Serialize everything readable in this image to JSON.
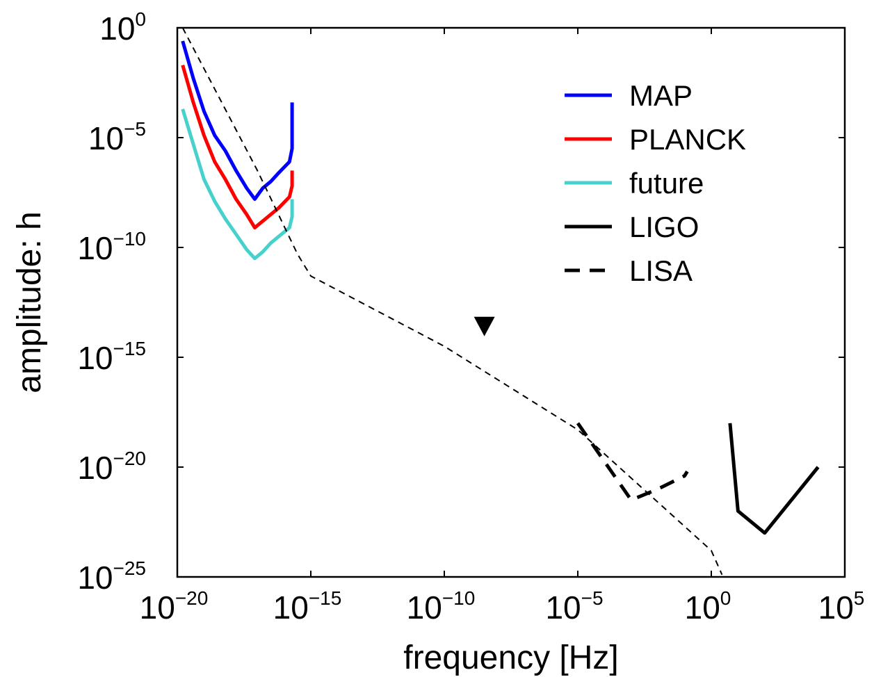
{
  "chart_data": {
    "type": "line",
    "title": "",
    "xlabel": "frequency [Hz]",
    "ylabel": "amplitude: h",
    "xscale": "log",
    "yscale": "log",
    "xlim_exp": [
      -20,
      5
    ],
    "ylim_exp": [
      -25,
      0
    ],
    "x_ticks": [
      {
        "base": "10",
        "exp": "−20",
        "value": -20
      },
      {
        "base": "10",
        "exp": "−15",
        "value": -15
      },
      {
        "base": "10",
        "exp": "−10",
        "value": -10
      },
      {
        "base": "10",
        "exp": "−5",
        "value": -5
      },
      {
        "base": "10",
        "exp": "0",
        "value": 0
      },
      {
        "base": "10",
        "exp": "5",
        "value": 5
      }
    ],
    "y_ticks": [
      {
        "base": "10",
        "exp": "0",
        "value": 0
      },
      {
        "base": "10",
        "exp": "−5",
        "value": -5
      },
      {
        "base": "10",
        "exp": "−10",
        "value": -10
      },
      {
        "base": "10",
        "exp": "−15",
        "value": -15
      },
      {
        "base": "10",
        "exp": "−20",
        "value": -20
      },
      {
        "base": "10",
        "exp": "−25",
        "value": -25
      }
    ],
    "grid": false,
    "legend_position": "top-right",
    "series": [
      {
        "name": "MAP",
        "color": "#0000ff",
        "style": "solid",
        "legend": true,
        "log10_x": [
          -19.8,
          -19.4,
          -19.0,
          -18.6,
          -18.2,
          -17.8,
          -17.4,
          -17.1,
          -16.8,
          -16.5,
          -16.2,
          -15.8,
          -15.7,
          -15.7
        ],
        "log10_y": [
          -0.6,
          -2.3,
          -3.8,
          -4.9,
          -5.6,
          -6.5,
          -7.3,
          -7.8,
          -7.3,
          -7.0,
          -6.6,
          -6.1,
          -5.5,
          -3.4
        ]
      },
      {
        "name": "PLANCK",
        "color": "#ff0000",
        "style": "solid",
        "legend": true,
        "log10_x": [
          -19.8,
          -19.4,
          -19.0,
          -18.6,
          -18.2,
          -17.8,
          -17.4,
          -17.1,
          -16.8,
          -16.5,
          -16.2,
          -15.8,
          -15.7,
          -15.7
        ],
        "log10_y": [
          -1.7,
          -3.4,
          -4.9,
          -6.1,
          -6.9,
          -7.8,
          -8.5,
          -9.1,
          -8.8,
          -8.5,
          -8.2,
          -7.7,
          -7.2,
          -6.5
        ]
      },
      {
        "name": "future",
        "color": "#48d1cc",
        "style": "solid",
        "legend": true,
        "log10_x": [
          -19.8,
          -19.4,
          -19.0,
          -18.6,
          -18.2,
          -17.8,
          -17.4,
          -17.1,
          -16.8,
          -16.5,
          -16.2,
          -15.8,
          -15.7,
          -15.7
        ],
        "log10_y": [
          -3.7,
          -5.3,
          -6.9,
          -7.9,
          -8.7,
          -9.4,
          -10.1,
          -10.5,
          -10.2,
          -9.8,
          -9.5,
          -9.1,
          -8.6,
          -7.8
        ]
      },
      {
        "name": "LIGO",
        "color": "#000000",
        "style": "solid",
        "legend": true,
        "log10_x": [
          0.7,
          1.0,
          2.0,
          4.0
        ],
        "log10_y": [
          -18.0,
          -22.0,
          -23.0,
          -20.0
        ]
      },
      {
        "name": "LISA",
        "color": "#000000",
        "style": "dashed",
        "legend": true,
        "log10_x": [
          -5.0,
          -3.0,
          -2.0,
          -1.0,
          -0.9
        ],
        "log10_y": [
          -18.0,
          -21.5,
          -21.0,
          -20.4,
          -20.2
        ]
      },
      {
        "name": "",
        "color": "#000000",
        "style": "thin-dashed",
        "legend": false,
        "log10_x": [
          -19.8,
          -17.0,
          -15.5,
          -15.0,
          -10.0,
          -5.0,
          0.0,
          0.4
        ],
        "log10_y": [
          0.0,
          -6.5,
          -10.3,
          -11.3,
          -14.5,
          -18.3,
          -23.8,
          -24.9
        ]
      }
    ],
    "markers": [
      {
        "shape": "down-triangle",
        "color": "#000000",
        "log10_x": -8.5,
        "log10_y": -13.6
      }
    ]
  }
}
